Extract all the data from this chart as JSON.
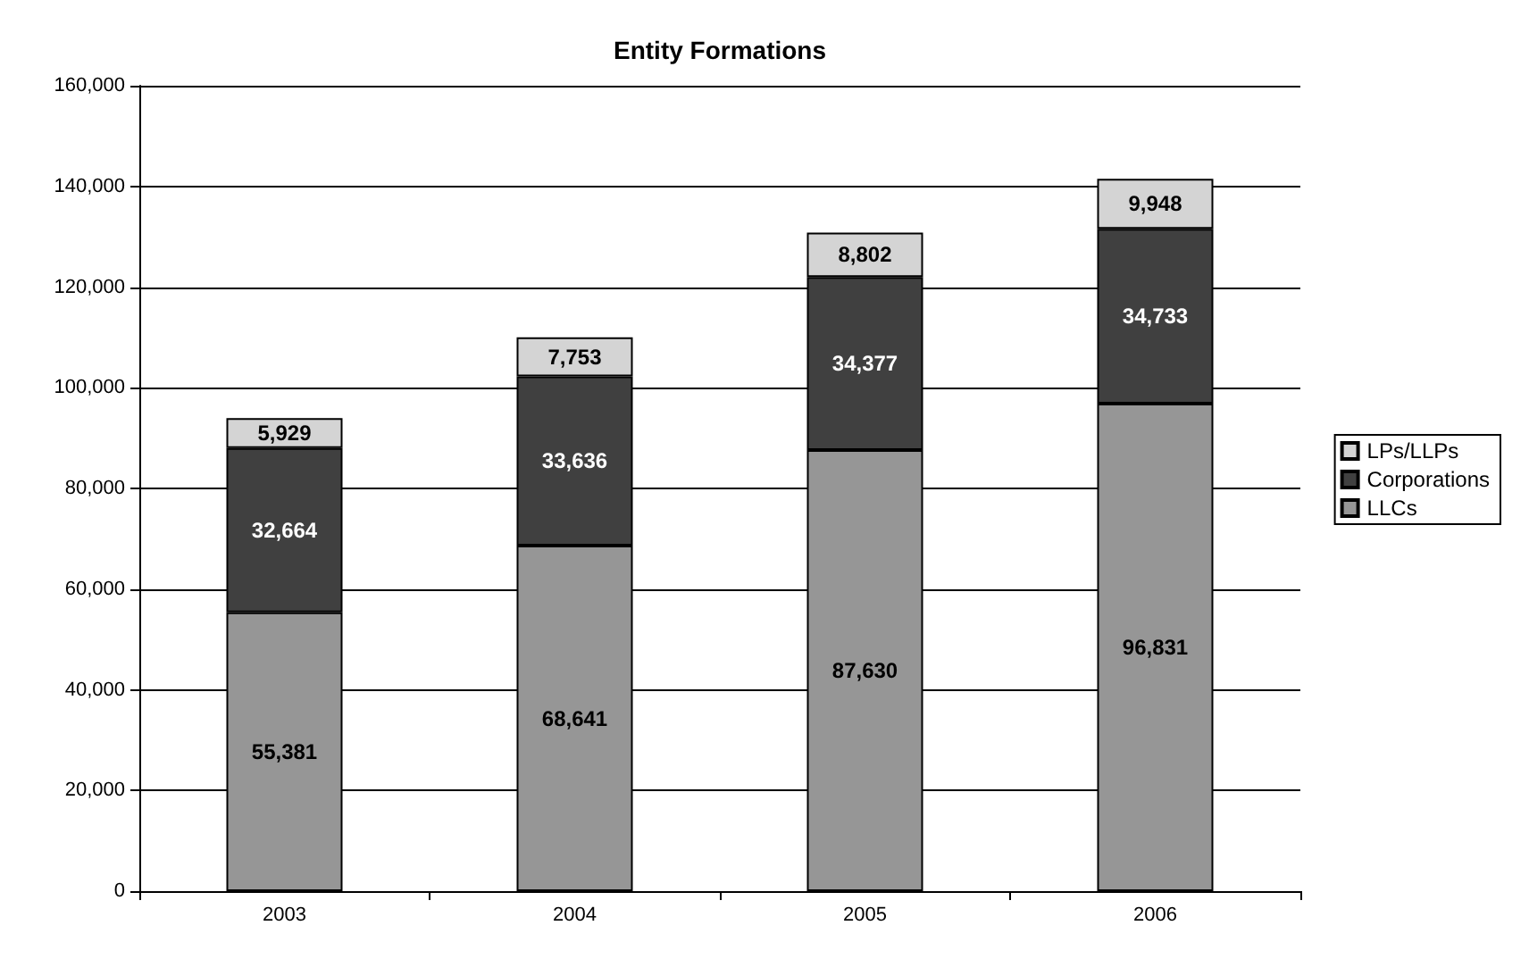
{
  "chart_data": {
    "type": "bar",
    "title": "Entity Formations",
    "categories": [
      "2003",
      "2004",
      "2005",
      "2006"
    ],
    "series": [
      {
        "name": "LLCs",
        "color": "#969696",
        "values": [
          55381,
          68641,
          87630,
          96831
        ],
        "value_labels": [
          "55,381",
          "68,641",
          "87,630",
          "96,831"
        ]
      },
      {
        "name": "Corporations",
        "color": "#404040",
        "values": [
          32664,
          33636,
          34377,
          34733
        ],
        "value_labels": [
          "32,664",
          "33,636",
          "34,377",
          "34,733"
        ]
      },
      {
        "name": "LPs/LLPs",
        "color": "#d4d4d4",
        "values": [
          5929,
          7753,
          8802,
          9948
        ],
        "value_labels": [
          "5,929",
          "7,753",
          "8,802",
          "9,948"
        ]
      }
    ],
    "stacked": true,
    "ylim": [
      0,
      160000
    ],
    "yticks": [
      {
        "value": 0,
        "label": "0"
      },
      {
        "value": 20000,
        "label": "20,000"
      },
      {
        "value": 40000,
        "label": "40,000"
      },
      {
        "value": 60000,
        "label": "60,000"
      },
      {
        "value": 80000,
        "label": "80,000"
      },
      {
        "value": 100000,
        "label": "100,000"
      },
      {
        "value": 120000,
        "label": "120,000"
      },
      {
        "value": 140000,
        "label": "140,000"
      },
      {
        "value": 160000,
        "label": "160,000"
      }
    ],
    "grid": "y",
    "legend": "right"
  }
}
